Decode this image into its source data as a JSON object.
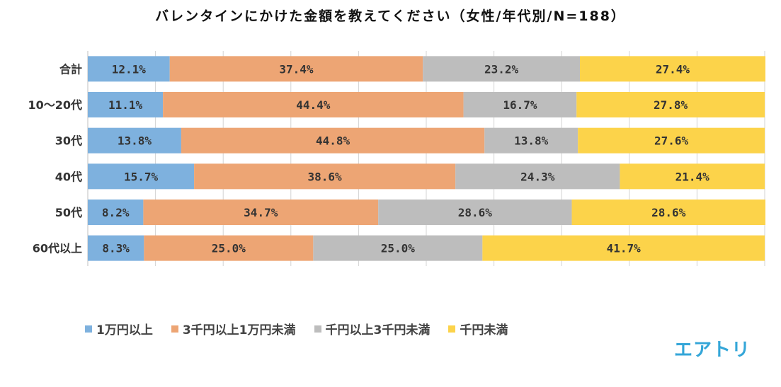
{
  "title": "バレンタインにかけた金額を教えてください（女性/年代別/N=188）",
  "colors": {
    "s1": "#7eb1de",
    "s2": "#eda574",
    "s3": "#bdbdbd",
    "s4": "#fcd34a",
    "grid": "#d3d3d3",
    "logo": "#34a6d8"
  },
  "logo_text": "エアトリ",
  "chart_data": {
    "type": "bar",
    "orientation": "horizontal",
    "stacked": "100%",
    "title": "バレンタインにかけた金額を教えてください（女性/年代別/N=188）",
    "categories": [
      "合計",
      "10～20代",
      "30代",
      "40代",
      "50代",
      "60代以上"
    ],
    "series": [
      {
        "name": "1万円以上",
        "values": [
          12.1,
          11.1,
          13.8,
          15.7,
          8.2,
          8.3
        ],
        "labels": [
          "12.1%",
          "11.1%",
          "13.8%",
          "15.7%",
          "8.2%",
          "8.3%"
        ]
      },
      {
        "name": "3千円以上1万円未満",
        "values": [
          37.4,
          44.4,
          44.8,
          38.6,
          34.7,
          25.0
        ],
        "labels": [
          "37.4%",
          "44.4%",
          "44.8%",
          "38.6%",
          "34.7%",
          "25.0%"
        ]
      },
      {
        "name": "千円以上3千円未満",
        "values": [
          23.2,
          16.7,
          13.8,
          24.3,
          28.6,
          25.0
        ],
        "labels": [
          "23.2%",
          "16.7%",
          "13.8%",
          "24.3%",
          "28.6%",
          "25.0%"
        ]
      },
      {
        "name": "千円未満",
        "values": [
          27.4,
          27.8,
          27.6,
          21.4,
          28.6,
          41.7
        ],
        "labels": [
          "27.4%",
          "27.8%",
          "27.6%",
          "21.4%",
          "28.6%",
          "41.7%"
        ]
      }
    ],
    "xlim": [
      0,
      100
    ],
    "grid": true,
    "legend_position": "bottom"
  }
}
